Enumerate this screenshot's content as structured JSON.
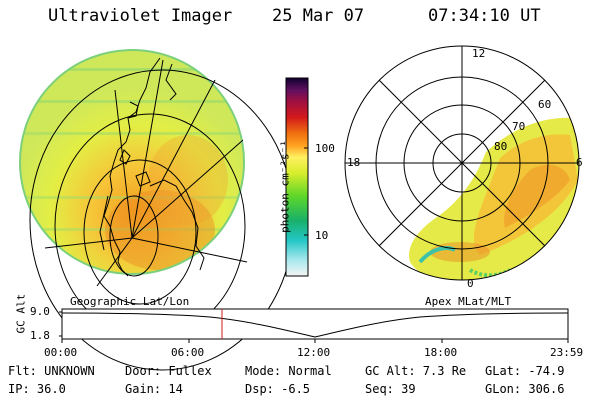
{
  "header": {
    "instrument": "Ultraviolet Imager",
    "date": "25 Mar 07",
    "time": "07:34:10 UT"
  },
  "colorbar": {
    "unit_label": "photon cm⁻²s⁻¹",
    "ticks": [
      "100",
      "10"
    ]
  },
  "left_panel": {
    "label": "Geographic Lat/Lon"
  },
  "right_panel": {
    "label": "Apex MLat/MLT",
    "mlt_labels": [
      "12",
      "18",
      "6",
      "0"
    ],
    "mlat_labels": [
      "60",
      "70",
      "80"
    ]
  },
  "altitude_plot": {
    "ylabel": "GC Alt",
    "ymax_label": "9.0",
    "ymin_label": "1.8",
    "x_ticks": [
      "00:00",
      "06:00",
      "12:00",
      "18:00",
      "23:59"
    ]
  },
  "info": {
    "filter": "Flt: UNKNOWN",
    "door": "Door: Fullex",
    "mode": "Mode: Normal",
    "gc_alt": "GC Alt: 7.3 Re",
    "glat": "GLat: -74.9",
    "ip": "IP: 36.0",
    "gain": "Gain: 14",
    "dsp": "Dsp:   -6.5",
    "seq": "Seq: 39",
    "glon": "GLon: 306.6"
  }
}
